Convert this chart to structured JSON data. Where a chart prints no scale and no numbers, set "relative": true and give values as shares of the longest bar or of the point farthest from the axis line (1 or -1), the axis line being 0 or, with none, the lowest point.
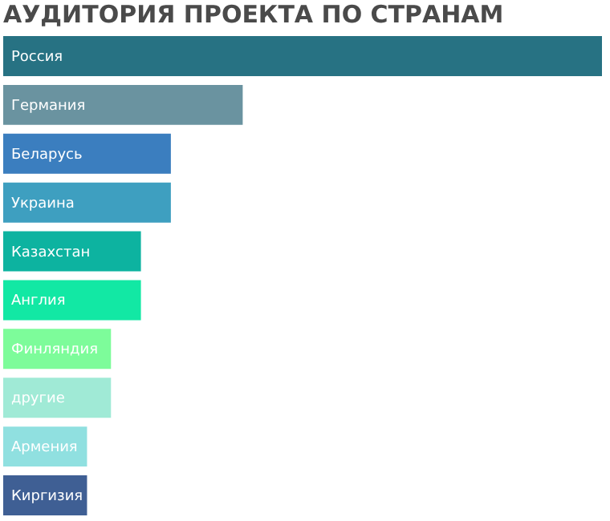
{
  "chart_data": {
    "type": "bar",
    "orientation": "horizontal",
    "relative": true,
    "title": "АУДИТОРИЯ ПРОЕКТА ПО СТРАНАМ",
    "categories": [
      "Россия",
      "Германия",
      "Беларусь",
      "Украина",
      "Казахстан",
      "Англия",
      "Финляндия",
      "другие",
      "Армения",
      "Киргизия"
    ],
    "values": [
      1,
      0.4,
      0.28,
      0.28,
      0.23,
      0.23,
      0.18,
      0.18,
      0.14,
      0.14
    ],
    "colors": [
      "#277283",
      "#6a93a0",
      "#3b7ebf",
      "#3e9fc0",
      "#0db3a0",
      "#12e8a4",
      "#7dfc9a",
      "#a0ead6",
      "#90e0e0",
      "#3f5f94"
    ]
  }
}
